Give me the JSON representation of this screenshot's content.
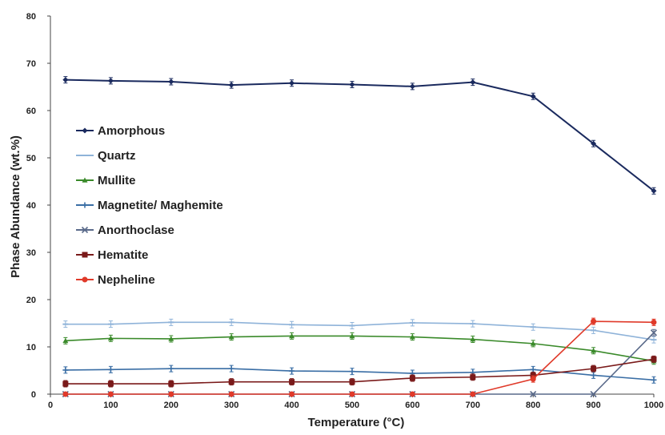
{
  "chart_data": {
    "type": "line",
    "title": "",
    "xlabel": "Temperature (°C)",
    "ylabel": "Phase Abundance (wt.%)",
    "ylim": [
      0,
      80
    ],
    "y_ticks": [
      "0",
      "10",
      "20",
      "30",
      "40",
      "50",
      "60",
      "70",
      "80"
    ],
    "x_ticks": [
      "0",
      "100",
      "200",
      "300",
      "400",
      "500",
      "600",
      "700",
      "800",
      "900",
      "1000"
    ],
    "x": [
      25,
      100,
      200,
      300,
      400,
      500,
      600,
      700,
      800,
      900,
      1000
    ],
    "grid": false,
    "legend_position": "left",
    "series": [
      {
        "name": "Amorphous",
        "color": "#1a2a5e",
        "marker": "diamond",
        "values": [
          66.5,
          66.3,
          66.1,
          65.4,
          65.8,
          65.5,
          65.1,
          66.0,
          63.0,
          53.0,
          43.0
        ]
      },
      {
        "name": "Quartz",
        "color": "#8fb3d9",
        "marker": "dash",
        "values": [
          14.8,
          14.8,
          15.2,
          15.2,
          14.7,
          14.5,
          15.1,
          14.9,
          14.2,
          13.5,
          11.5
        ]
      },
      {
        "name": "Mullite",
        "color": "#3a8a2a",
        "marker": "triangle",
        "values": [
          11.3,
          11.8,
          11.7,
          12.1,
          12.3,
          12.3,
          12.1,
          11.6,
          10.7,
          9.2,
          7.0
        ]
      },
      {
        "name": "Magnetite/ Maghemite",
        "color": "#3a6ea5",
        "marker": "cross",
        "values": [
          5.1,
          5.2,
          5.4,
          5.4,
          4.9,
          4.8,
          4.4,
          4.6,
          5.2,
          4.0,
          3.0
        ]
      },
      {
        "name": "Anorthoclase",
        "color": "#5a6a8a",
        "marker": "x",
        "values": [
          0,
          0,
          0,
          0,
          0,
          0,
          0,
          0,
          0,
          0,
          13.0
        ]
      },
      {
        "name": "Hematite",
        "color": "#7a1a1a",
        "marker": "square",
        "values": [
          2.2,
          2.2,
          2.2,
          2.6,
          2.6,
          2.6,
          3.4,
          3.6,
          4.0,
          5.4,
          7.4
        ]
      },
      {
        "name": "Nepheline",
        "color": "#e03a2a",
        "marker": "circle",
        "values": [
          0,
          0,
          0,
          0,
          0,
          0,
          0,
          0,
          3.2,
          15.4,
          15.2
        ]
      }
    ]
  }
}
